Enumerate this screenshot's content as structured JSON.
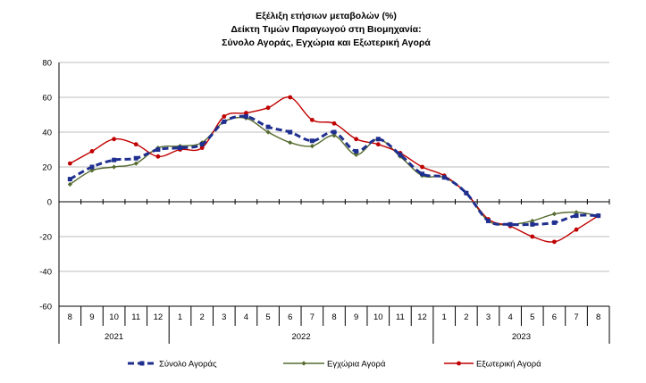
{
  "chart_data": {
    "type": "line",
    "title_lines": [
      "Εξέλιξη ετήσιων μεταβολών (%)",
      "Δείκτη Τιμών Παραγωγού στη Βιομηχανία:",
      "Σύνολο Αγοράς, Εγχώρια και Εξωτερική Αγορά"
    ],
    "xlabel": "",
    "ylabel": "",
    "ylim": [
      -60,
      80
    ],
    "yticks": [
      -60,
      -40,
      -20,
      0,
      20,
      40,
      60,
      80
    ],
    "grid": true,
    "legend_position": "bottom",
    "categories": [
      "8",
      "9",
      "10",
      "11",
      "12",
      "1",
      "2",
      "3",
      "4",
      "5",
      "6",
      "7",
      "8",
      "9",
      "10",
      "11",
      "12",
      "1",
      "2",
      "3",
      "4",
      "5",
      "6",
      "7",
      "8"
    ],
    "year_groups": [
      {
        "label": "2021",
        "start": 0,
        "end": 4
      },
      {
        "label": "2022",
        "start": 5,
        "end": 16
      },
      {
        "label": "2023",
        "start": 17,
        "end": 24
      }
    ],
    "series": [
      {
        "name": "Σύνολο Αγοράς",
        "color": "#1f2f8f",
        "style": "dashed",
        "values": [
          13,
          20,
          24,
          25,
          30,
          31,
          33,
          46,
          49,
          43,
          40,
          35,
          40,
          29,
          36,
          27,
          16,
          14,
          5,
          -11,
          -13,
          -13,
          -12,
          -8,
          -8
        ]
      },
      {
        "name": "Εγχώρια Αγορά",
        "color": "#556b2f",
        "style": "solid",
        "values": [
          10,
          18,
          20,
          22,
          31,
          32,
          34,
          46,
          48,
          40,
          34,
          32,
          38,
          27,
          36,
          26,
          15,
          14,
          5,
          -11,
          -13,
          -11,
          -7,
          -6,
          -8
        ]
      },
      {
        "name": "Εξωτερική Αγορά",
        "color": "#c00000",
        "style": "solid",
        "values": [
          22,
          29,
          36,
          33,
          26,
          30,
          31,
          49,
          51,
          54,
          60,
          47,
          45,
          36,
          33,
          28,
          20,
          15,
          5,
          -10,
          -14,
          -20,
          -23,
          -16,
          -8
        ]
      }
    ]
  }
}
